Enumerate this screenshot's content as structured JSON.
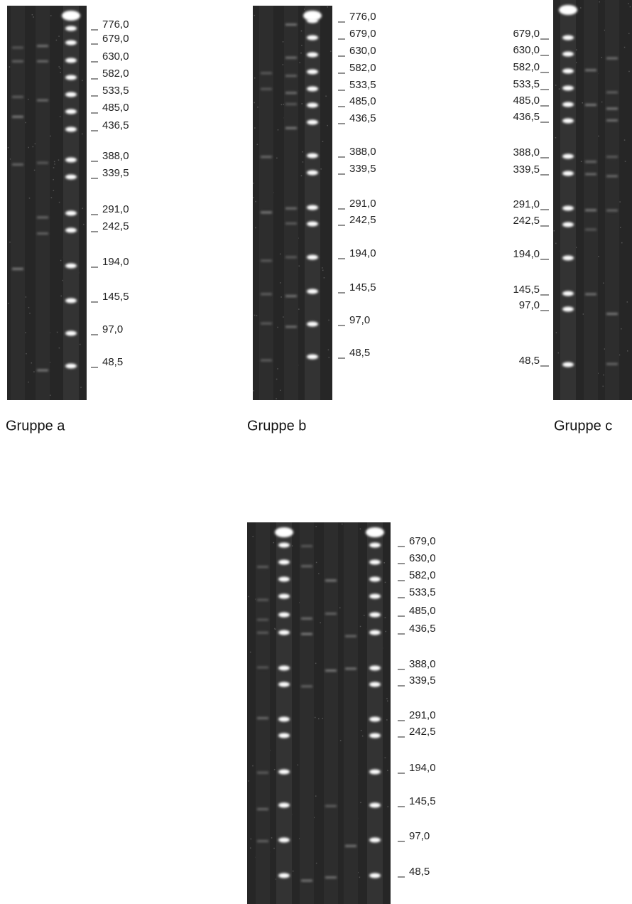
{
  "panels": [
    {
      "caption": "Gruppe a",
      "markers": [
        "776,0",
        "679,0",
        "630,0",
        "582,0",
        "533,5",
        "485,0",
        "436,5",
        "388,0",
        "339,5",
        "291,0",
        "242,5",
        "194,0",
        "145,5",
        "97,0",
        "48,5"
      ]
    },
    {
      "caption": "Gruppe b",
      "markers": [
        "776,0",
        "679,0",
        "630,0",
        "582,0",
        "533,5",
        "485,0",
        "436,5",
        "388,0",
        "339,5",
        "291,0",
        "242,5",
        "194,0",
        "145,5",
        "97,0",
        "48,5"
      ]
    },
    {
      "caption": "Gruppe c",
      "markers": [
        "679,0",
        "630,0",
        "582,0",
        "533,5",
        "485,0",
        "436,5",
        "388,0",
        "339,5",
        "291,0",
        "242,5",
        "194,0",
        "145,5",
        "97,0",
        "48,5"
      ]
    },
    {
      "markers": [
        "679,0",
        "630,0",
        "582,0",
        "533,5",
        "485,0",
        "436,5",
        "388,0",
        "339,5",
        "291,0",
        "242,5",
        "194,0",
        "145,5",
        "97,0",
        "48,5"
      ]
    }
  ]
}
